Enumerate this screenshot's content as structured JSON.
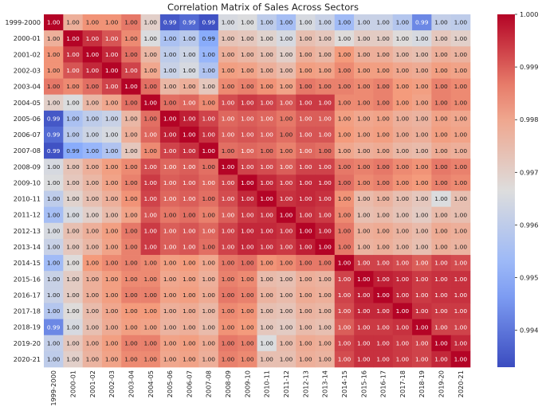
{
  "chart_data": {
    "type": "heatmap",
    "title": "Correlation Matrix of Sales Across Sectors",
    "xlabel": "",
    "ylabel": "",
    "labels": [
      "1999-2000",
      "2000-01",
      "2001-02",
      "2002-03",
      "2003-04",
      "2004-05",
      "2005-06",
      "2006-07",
      "2007-08",
      "2008-09",
      "2009-10",
      "2010-11",
      "2011-12",
      "2012-13",
      "2013-14",
      "2014-15",
      "2015-16",
      "2016-17",
      "2017-18",
      "2018-19",
      "2019-20",
      "2020-21"
    ],
    "value_format": "2dp",
    "colormap": "coolwarm",
    "vmin": 0.9933,
    "vmax": 1.0,
    "colorbar_ticks": [
      0.994,
      0.995,
      0.996,
      0.997,
      0.998,
      0.999,
      1.0
    ],
    "colorbar_tick_labels": [
      "0.994",
      "0.995",
      "0.996",
      "0.997",
      "0.998",
      "0.999",
      "1.000"
    ],
    "matrix": [
      [
        1.0,
        0.9978,
        0.9984,
        0.9984,
        0.9987,
        0.997,
        0.9935,
        0.9938,
        0.9934,
        0.9965,
        0.9966,
        0.996,
        0.9955,
        0.9965,
        0.9962,
        0.9954,
        0.9962,
        0.9962,
        0.9958,
        0.9943,
        0.9961,
        0.996
      ],
      [
        0.9978,
        1.0,
        0.9995,
        0.9991,
        0.9985,
        0.9966,
        0.9956,
        0.9959,
        0.9949,
        0.9973,
        0.9972,
        0.9969,
        0.9965,
        0.9974,
        0.9972,
        0.9967,
        0.9971,
        0.9971,
        0.9967,
        0.9965,
        0.9972,
        0.997
      ],
      [
        0.9984,
        0.9995,
        1.0,
        0.9996,
        0.9988,
        0.9976,
        0.996,
        0.9963,
        0.9952,
        0.9978,
        0.9976,
        0.9974,
        0.997,
        0.9978,
        0.9976,
        0.9983,
        0.9978,
        0.9978,
        0.9975,
        0.9974,
        0.9978,
        0.9977
      ],
      [
        0.9984,
        0.9991,
        0.9996,
        1.0,
        0.9993,
        0.998,
        0.9962,
        0.9965,
        0.9957,
        0.9982,
        0.9981,
        0.9978,
        0.9975,
        0.9982,
        0.9981,
        0.9985,
        0.9982,
        0.9982,
        0.998,
        0.9979,
        0.9982,
        0.9981
      ],
      [
        0.9987,
        0.9985,
        0.9988,
        0.9993,
        1.0,
        0.9988,
        0.9976,
        0.9978,
        0.9972,
        0.9985,
        0.9986,
        0.9984,
        0.9981,
        0.9987,
        0.9986,
        0.9986,
        0.9985,
        0.9986,
        0.9983,
        0.9982,
        0.9986,
        0.9985
      ],
      [
        0.997,
        0.9966,
        0.9976,
        0.998,
        0.9988,
        1.0,
        0.9988,
        0.9989,
        0.9985,
        0.9992,
        0.9994,
        0.9993,
        0.9991,
        0.9994,
        0.9994,
        0.9985,
        0.9985,
        0.9986,
        0.9983,
        0.9981,
        0.9986,
        0.9985
      ],
      [
        0.9935,
        0.9956,
        0.996,
        0.9962,
        0.9976,
        0.9988,
        1.0,
        0.9997,
        0.9993,
        0.9989,
        0.999,
        0.9989,
        0.9987,
        0.999,
        0.999,
        0.9982,
        0.998,
        0.9981,
        0.9978,
        0.9977,
        0.9981,
        0.998
      ],
      [
        0.9938,
        0.9959,
        0.9963,
        0.9965,
        0.9978,
        0.9989,
        0.9997,
        1.0,
        0.9995,
        0.999,
        0.9991,
        0.999,
        0.9988,
        0.9991,
        0.9991,
        0.9983,
        0.9981,
        0.9982,
        0.9979,
        0.9978,
        0.9982,
        0.9981
      ],
      [
        0.9934,
        0.9949,
        0.9952,
        0.9957,
        0.9972,
        0.9985,
        0.9993,
        0.9995,
        1.0,
        0.9988,
        0.9989,
        0.9988,
        0.9986,
        0.9989,
        0.9988,
        0.998,
        0.9978,
        0.9979,
        0.9976,
        0.9975,
        0.9979,
        0.9978
      ],
      [
        0.9965,
        0.9973,
        0.9978,
        0.9982,
        0.9985,
        0.9992,
        0.9989,
        0.999,
        0.9988,
        1.0,
        0.9993,
        0.9992,
        0.999,
        0.9993,
        0.9993,
        0.9987,
        0.9986,
        0.9987,
        0.9985,
        0.9984,
        0.9987,
        0.9986
      ],
      [
        0.9966,
        0.9972,
        0.9976,
        0.9981,
        0.9986,
        0.9994,
        0.999,
        0.9991,
        0.9989,
        0.9993,
        1.0,
        0.9996,
        0.9994,
        0.9996,
        0.9996,
        0.9988,
        0.9985,
        0.9986,
        0.9984,
        0.9983,
        0.9986,
        0.9985
      ],
      [
        0.996,
        0.9969,
        0.9974,
        0.9978,
        0.9984,
        0.9993,
        0.9989,
        0.999,
        0.9988,
        0.9992,
        0.9996,
        1.0,
        0.9995,
        0.9996,
        0.9995,
        0.9984,
        0.9975,
        0.9977,
        0.9974,
        0.9972,
        0.9966,
        0.9974
      ],
      [
        0.9955,
        0.9965,
        0.997,
        0.9975,
        0.9981,
        0.9991,
        0.9987,
        0.9988,
        0.9986,
        0.999,
        0.9994,
        0.9995,
        1.0,
        0.9995,
        0.9994,
        0.9985,
        0.9974,
        0.9975,
        0.9973,
        0.9971,
        0.9975,
        0.9974
      ],
      [
        0.9965,
        0.9974,
        0.9978,
        0.9982,
        0.9987,
        0.9994,
        0.999,
        0.9991,
        0.9989,
        0.9993,
        0.9996,
        0.9996,
        0.9995,
        1.0,
        0.9997,
        0.9987,
        0.9978,
        0.9979,
        0.9977,
        0.9975,
        0.9979,
        0.9978
      ],
      [
        0.9962,
        0.9972,
        0.9976,
        0.9981,
        0.9986,
        0.9994,
        0.999,
        0.9991,
        0.9988,
        0.9993,
        0.9996,
        0.9995,
        0.9994,
        0.9997,
        1.0,
        0.9987,
        0.9977,
        0.9978,
        0.9976,
        0.9974,
        0.9978,
        0.9977
      ],
      [
        0.9954,
        0.9967,
        0.9983,
        0.9985,
        0.9986,
        0.9985,
        0.9982,
        0.9983,
        0.998,
        0.9987,
        0.9988,
        0.9984,
        0.9985,
        0.9987,
        0.9987,
        1.0,
        0.9993,
        0.9993,
        0.9992,
        0.999,
        0.9993,
        0.9992
      ],
      [
        0.9962,
        0.9971,
        0.9978,
        0.9982,
        0.9985,
        0.9985,
        0.998,
        0.9981,
        0.9978,
        0.9986,
        0.9985,
        0.9975,
        0.9974,
        0.9978,
        0.9977,
        0.9993,
        1.0,
        0.9997,
        0.9996,
        0.9994,
        0.9995,
        0.9995
      ],
      [
        0.9962,
        0.9971,
        0.9978,
        0.9982,
        0.9986,
        0.9986,
        0.9981,
        0.9982,
        0.9979,
        0.9987,
        0.9986,
        0.9977,
        0.9975,
        0.9979,
        0.9978,
        0.9993,
        0.9997,
        1.0,
        0.9996,
        0.9994,
        0.9995,
        0.9995
      ],
      [
        0.9958,
        0.9967,
        0.9975,
        0.998,
        0.9983,
        0.9983,
        0.9978,
        0.9979,
        0.9976,
        0.9985,
        0.9984,
        0.9974,
        0.9973,
        0.9977,
        0.9976,
        0.9992,
        0.9996,
        0.9996,
        1.0,
        0.9995,
        0.9994,
        0.9994
      ],
      [
        0.9943,
        0.9965,
        0.9974,
        0.9979,
        0.9982,
        0.9981,
        0.9977,
        0.9978,
        0.9975,
        0.9984,
        0.9983,
        0.9972,
        0.9971,
        0.9975,
        0.9974,
        0.999,
        0.9994,
        0.9994,
        0.9995,
        1.0,
        0.9993,
        0.9993
      ],
      [
        0.9961,
        0.9972,
        0.9978,
        0.9982,
        0.9986,
        0.9986,
        0.9981,
        0.9982,
        0.9979,
        0.9987,
        0.9986,
        0.9966,
        0.9975,
        0.9979,
        0.9978,
        0.9993,
        0.9995,
        0.9995,
        0.9994,
        0.9993,
        1.0,
        0.9996
      ],
      [
        0.996,
        0.997,
        0.9977,
        0.9981,
        0.9985,
        0.9985,
        0.998,
        0.9981,
        0.9978,
        0.9986,
        0.9985,
        0.9974,
        0.9974,
        0.9978,
        0.9977,
        0.9992,
        0.9995,
        0.9995,
        0.9994,
        0.9993,
        0.9996,
        1.0
      ]
    ]
  }
}
